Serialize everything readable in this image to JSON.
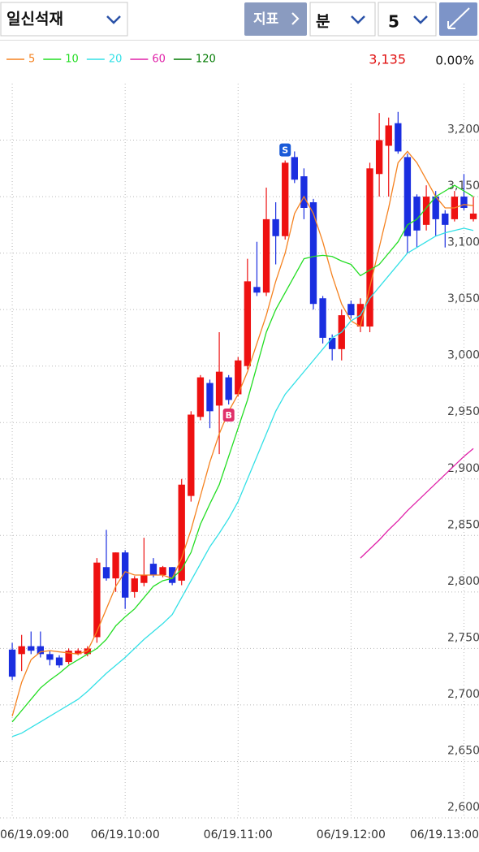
{
  "header": {
    "stock": "일신석재",
    "indicator_button": "지표",
    "period_unit": "분",
    "period_value": "5"
  },
  "price": {
    "last": "3,135",
    "change": "0.00%"
  },
  "chart_data": {
    "type": "candlestick",
    "x": [
      0,
      1,
      2,
      3,
      4,
      5,
      6,
      7,
      8,
      9,
      10,
      11,
      12,
      13,
      14,
      15,
      16,
      17,
      18,
      19,
      20,
      21,
      22,
      23,
      24,
      25,
      26,
      27,
      28,
      29,
      30,
      31,
      32,
      33,
      34,
      35,
      36,
      37,
      38,
      39,
      40,
      41,
      42,
      43,
      44,
      45,
      46,
      47,
      48,
      49
    ],
    "xlim": [
      -1.3,
      49.6
    ],
    "xticks": [
      {
        "value": 0,
        "label": "06/19.09:00"
      },
      {
        "value": 12,
        "label": "06/19.10:00"
      },
      {
        "value": 24,
        "label": "06/19.11:00"
      },
      {
        "value": 36,
        "label": "06/19.12:00"
      },
      {
        "value": 48,
        "label": "06/19.13:00"
      }
    ],
    "ylim": [
      2600,
      3250
    ],
    "yticks": [
      {
        "value": 2600,
        "label": "2,600"
      },
      {
        "value": 2650,
        "label": "2,650"
      },
      {
        "value": 2700,
        "label": "2,700"
      },
      {
        "value": 2750,
        "label": "2,750"
      },
      {
        "value": 2800,
        "label": "2,800"
      },
      {
        "value": 2850,
        "label": "2,850"
      },
      {
        "value": 2900,
        "label": "2,900"
      },
      {
        "value": 2950,
        "label": "2,950"
      },
      {
        "value": 3000,
        "label": "3,000"
      },
      {
        "value": 3050,
        "label": "3,050"
      },
      {
        "value": 3100,
        "label": "3,100"
      },
      {
        "value": 3150,
        "label": "3,150"
      },
      {
        "value": 3200,
        "label": "3,200"
      }
    ],
    "grid": true,
    "up_color": "#ee1111",
    "down_color": "#1a2ee0",
    "open": [
      2749,
      2745,
      2752,
      2752,
      2745,
      2742,
      2738,
      2745,
      2745,
      2760,
      2822,
      2812,
      2835,
      2800,
      2808,
      2825,
      2815,
      2822,
      2810,
      2885,
      2955,
      2985,
      2965,
      2990,
      2975,
      3000,
      3070,
      3065,
      3130,
      3115,
      3185,
      3168,
      3145,
      3060,
      3025,
      3015,
      3055,
      3035,
      3035,
      3170,
      3195,
      3215,
      3185,
      3150,
      3125,
      3150,
      3135,
      3130,
      3150,
      3130
    ],
    "high": [
      2755,
      2762,
      2765,
      2765,
      2748,
      2744,
      2750,
      2750,
      2752,
      2830,
      2855,
      2835,
      2837,
      2814,
      2848,
      2830,
      2823,
      2822,
      2900,
      2960,
      2992,
      2988,
      3030,
      2992,
      3008,
      3095,
      3110,
      3158,
      3145,
      3182,
      3190,
      3175,
      3148,
      3062,
      3028,
      3050,
      3058,
      3060,
      3180,
      3224,
      3220,
      3225,
      3188,
      3152,
      3160,
      3155,
      3138,
      3155,
      3170,
      3150
    ],
    "low": [
      2722,
      2730,
      2745,
      2742,
      2735,
      2733,
      2736,
      2744,
      2743,
      2755,
      2810,
      2800,
      2785,
      2795,
      2805,
      2813,
      2813,
      2806,
      2806,
      2880,
      2952,
      2945,
      2922,
      2966,
      2973,
      2997,
      3062,
      3062,
      3090,
      3112,
      3162,
      3130,
      3050,
      3020,
      3005,
      3005,
      3042,
      3030,
      3030,
      3150,
      3150,
      3188,
      3100,
      3105,
      3120,
      3115,
      3105,
      3128,
      3138,
      3128
    ],
    "close": [
      2725,
      2752,
      2748,
      2745,
      2740,
      2735,
      2748,
      2748,
      2750,
      2826,
      2812,
      2835,
      2795,
      2812,
      2815,
      2815,
      2822,
      2808,
      2895,
      2957,
      2990,
      2960,
      2995,
      2970,
      3005,
      3075,
      3065,
      3130,
      3115,
      3180,
      3165,
      3140,
      3055,
      3025,
      3015,
      3045,
      3045,
      3055,
      3175,
      3200,
      3213,
      3190,
      3115,
      3120,
      3150,
      3130,
      3125,
      3150,
      3140,
      3135
    ],
    "signals": {
      "text": [
        "S",
        "B"
      ],
      "x": [
        29,
        23
      ],
      "colors": [
        "#1a5ad8",
        "#e0306a"
      ]
    },
    "series": [
      {
        "name": "5",
        "color": "#f58220",
        "values": [
          2690,
          2720,
          2740,
          2747,
          2748,
          2747,
          2746,
          2745,
          2748,
          2765,
          2785,
          2805,
          2818,
          2815,
          2815,
          2815,
          2815,
          2812,
          2830,
          2855,
          2885,
          2915,
          2940,
          2960,
          2975,
          2995,
          3020,
          3045,
          3075,
          3100,
          3135,
          3150,
          3135,
          3110,
          3080,
          3055,
          3040,
          3035,
          3070,
          3105,
          3140,
          3180,
          3190,
          3180,
          3165,
          3150,
          3140,
          3140,
          3143,
          3142
        ]
      },
      {
        "name": "10",
        "color": "#22dd22",
        "values": [
          2685,
          2695,
          2705,
          2715,
          2722,
          2728,
          2735,
          2740,
          2745,
          2750,
          2758,
          2770,
          2778,
          2785,
          2795,
          2805,
          2810,
          2812,
          2820,
          2835,
          2860,
          2878,
          2895,
          2920,
          2945,
          2970,
          3000,
          3030,
          3050,
          3065,
          3080,
          3095,
          3097,
          3098,
          3097,
          3093,
          3090,
          3080,
          3085,
          3090,
          3100,
          3110,
          3125,
          3130,
          3140,
          3150,
          3155,
          3160,
          3155,
          3150
        ]
      },
      {
        "name": "20",
        "color": "#33e0e6",
        "values": [
          2672,
          2675,
          2680,
          2685,
          2690,
          2695,
          2700,
          2705,
          2712,
          2720,
          2728,
          2735,
          2742,
          2750,
          2758,
          2765,
          2772,
          2780,
          2795,
          2810,
          2825,
          2840,
          2852,
          2865,
          2880,
          2900,
          2920,
          2940,
          2960,
          2975,
          2985,
          2995,
          3005,
          3015,
          3025,
          3030,
          3040,
          3045,
          3060,
          3070,
          3080,
          3090,
          3100,
          3105,
          3110,
          3115,
          3118,
          3120,
          3122,
          3120
        ]
      },
      {
        "name": "60",
        "color": "#e020a8",
        "values": [
          null,
          null,
          null,
          null,
          null,
          null,
          null,
          null,
          null,
          null,
          null,
          null,
          null,
          null,
          null,
          null,
          null,
          null,
          null,
          null,
          null,
          null,
          null,
          null,
          null,
          null,
          null,
          null,
          null,
          null,
          null,
          null,
          null,
          null,
          null,
          null,
          null,
          2830,
          2838,
          2846,
          2855,
          2863,
          2872,
          2880,
          2888,
          2896,
          2904,
          2912,
          2920,
          2927
        ]
      },
      {
        "name": "120",
        "color": "#007a00",
        "values": [
          null,
          null,
          null,
          null,
          null,
          null,
          null,
          null,
          null,
          null,
          null,
          null,
          null,
          null,
          null,
          null,
          null,
          null,
          null,
          null,
          null,
          null,
          null,
          null,
          null,
          null,
          null,
          null,
          null,
          null,
          null,
          null,
          null,
          null,
          null,
          null,
          null,
          null,
          null,
          null,
          null,
          null,
          null,
          null,
          null,
          null,
          null,
          null,
          null,
          null
        ]
      }
    ]
  }
}
